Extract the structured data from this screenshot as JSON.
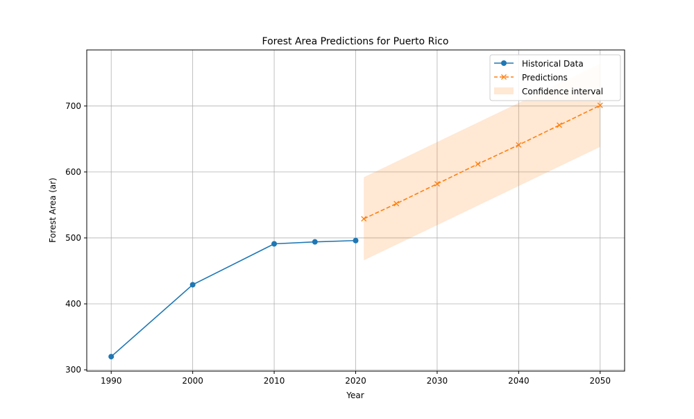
{
  "chart_data": {
    "type": "line",
    "title": "Forest Area Predictions for Puerto Rico",
    "xlabel": "Year",
    "ylabel": "Forest Area (ar)",
    "xlim": [
      1987,
      2053
    ],
    "ylim": [
      298,
      785
    ],
    "xticks": [
      1990,
      2000,
      2010,
      2020,
      2030,
      2040,
      2050
    ],
    "yticks": [
      300,
      400,
      500,
      600,
      700
    ],
    "grid": true,
    "legend_position": "top-right",
    "series": [
      {
        "name": "Historical Data",
        "style": "solid-line-circle-markers",
        "color": "#1f77b4",
        "x": [
          1990,
          2000,
          2010,
          2015,
          2020
        ],
        "y": [
          320,
          429,
          491,
          494,
          496
        ]
      },
      {
        "name": "Predictions",
        "style": "dashed-line-x-markers",
        "color": "#ff7f0e",
        "x": [
          2021,
          2025,
          2030,
          2035,
          2040,
          2045,
          2050
        ],
        "y": [
          529,
          552,
          582,
          612,
          641,
          671,
          701
        ]
      }
    ],
    "confidence_interval": {
      "name": "Confidence interval",
      "color": "#ff7f0e",
      "opacity": 0.18,
      "x": [
        2021,
        2050
      ],
      "lower": [
        466,
        638
      ],
      "upper": [
        592,
        764
      ]
    }
  }
}
